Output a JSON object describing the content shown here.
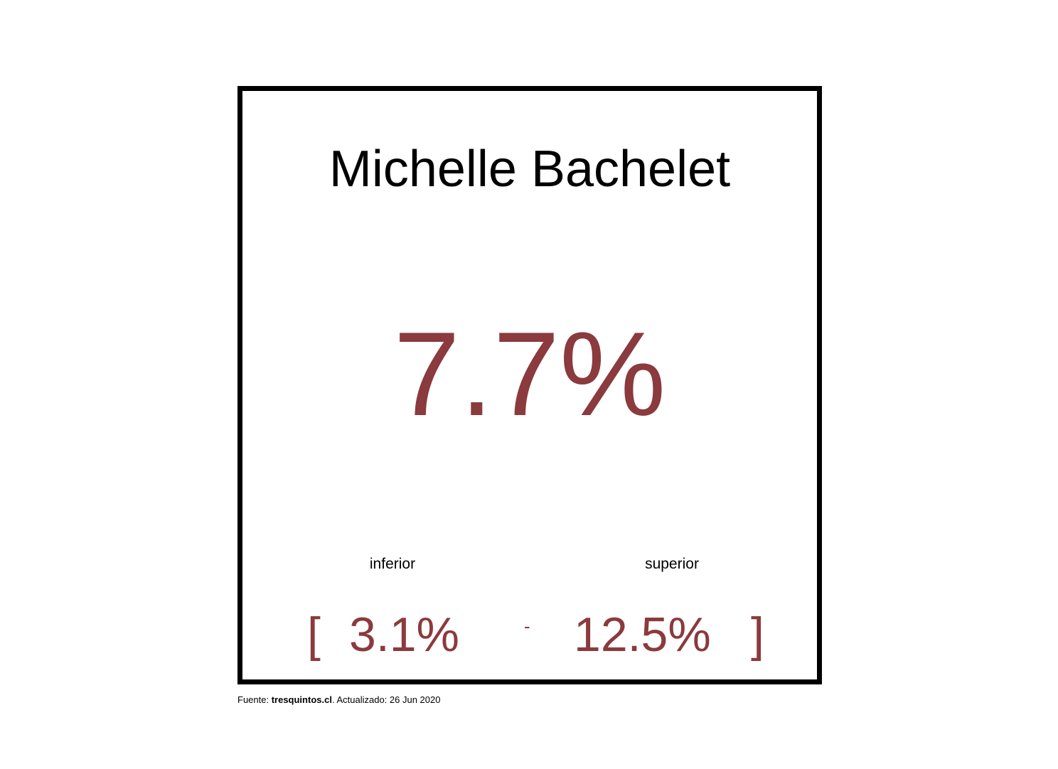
{
  "card": {
    "name": "Michelle Bachelet",
    "value": "7.7%",
    "lower_label": "inferior",
    "upper_label": "superior",
    "bracket_open": "[",
    "lower_value": "3.1%",
    "separator": "-",
    "upper_value": "12.5%",
    "bracket_close": "]"
  },
  "footer": {
    "prefix": "Fuente: ",
    "source": "tresquintos.cl",
    "suffix": ". Actualizado: 26 Jun 2020"
  },
  "colors": {
    "accent": "#8b3a3d",
    "text": "#000000",
    "border": "#000000"
  }
}
